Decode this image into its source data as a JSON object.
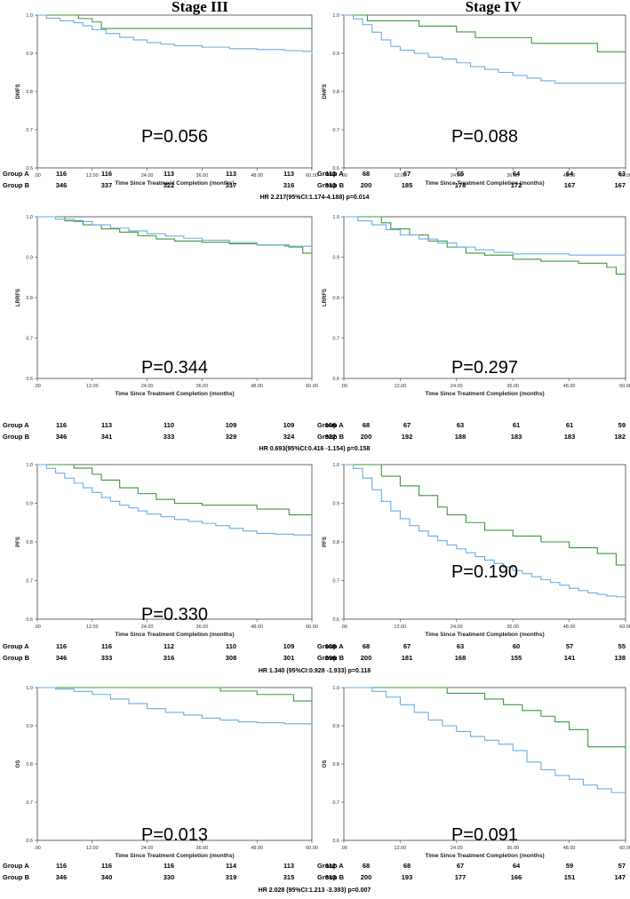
{
  "columns": {
    "left": "Stage III",
    "right": "Stage IV"
  },
  "colors": {
    "groupA": "#3a9a3a",
    "groupB": "#6aaee6",
    "axis": "#444444"
  },
  "common": {
    "xticks": [
      ".00",
      "12.00",
      "24.00",
      "36.00",
      "48.00",
      "60.00"
    ],
    "yticks": [
      "0.6",
      "0.7",
      "0.8",
      "0.9",
      "1.0"
    ],
    "xlabel": "Time Since Treatment Completion (months)",
    "groupA_label": "Group A",
    "groupB_label": "Group B"
  },
  "chart_data": [
    {
      "type": "line",
      "row": 0,
      "col": 0,
      "ylabel": "DMFS",
      "pvalue": "P=0.056",
      "ylim": [
        0.6,
        1.0
      ],
      "xlim": [
        0,
        60
      ],
      "series": [
        {
          "name": "Group A",
          "x": [
            0,
            8,
            9,
            12,
            14,
            60
          ],
          "y": [
            1.0,
            1.0,
            0.991,
            0.982,
            0.965,
            0.965
          ]
        },
        {
          "name": "Group B",
          "x": [
            0,
            2,
            5,
            8,
            10,
            12,
            15,
            18,
            21,
            24,
            27,
            30,
            36,
            42,
            48,
            54,
            58,
            60
          ],
          "y": [
            1.0,
            0.992,
            0.985,
            0.98,
            0.972,
            0.962,
            0.952,
            0.942,
            0.935,
            0.928,
            0.924,
            0.92,
            0.916,
            0.912,
            0.91,
            0.907,
            0.905,
            0.9
          ]
        }
      ],
      "risk": {
        "A": [
          "116",
          "116",
          "113",
          "113",
          "113",
          "113"
        ],
        "B": [
          "346",
          "337",
          "322",
          "317",
          "316",
          "313"
        ]
      },
      "hr": "HR 2.217(95%CI:1.174-4.188) p=0.014"
    },
    {
      "type": "line",
      "row": 0,
      "col": 1,
      "ylabel": "DMFS",
      "pvalue": "P=0.088",
      "ylim": [
        0.6,
        1.0
      ],
      "xlim": [
        0,
        60
      ],
      "series": [
        {
          "name": "Group A",
          "x": [
            0,
            4,
            5,
            12,
            16,
            24,
            28,
            36,
            40,
            54,
            60
          ],
          "y": [
            1.0,
            1.0,
            0.985,
            0.985,
            0.971,
            0.956,
            0.941,
            0.941,
            0.926,
            0.904,
            0.904
          ]
        },
        {
          "name": "Group B",
          "x": [
            0,
            2,
            4,
            6,
            8,
            10,
            12,
            15,
            18,
            21,
            24,
            27,
            30,
            33,
            36,
            39,
            42,
            45,
            60
          ],
          "y": [
            1.0,
            0.99,
            0.975,
            0.955,
            0.935,
            0.918,
            0.908,
            0.9,
            0.89,
            0.885,
            0.875,
            0.865,
            0.858,
            0.85,
            0.842,
            0.835,
            0.828,
            0.822,
            0.822
          ]
        }
      ],
      "risk": {
        "A": [
          "68",
          "67",
          "65",
          "64",
          "64",
          "63"
        ],
        "B": [
          "200",
          "185",
          "178",
          "172",
          "167",
          "167"
        ]
      },
      "hr": ""
    },
    {
      "type": "line",
      "row": 1,
      "col": 0,
      "ylabel": "LRRFS",
      "pvalue": "P=0.344",
      "ylim": [
        0.6,
        1.0
      ],
      "xlim": [
        0,
        60
      ],
      "series": [
        {
          "name": "Group A",
          "x": [
            0,
            6,
            10,
            14,
            18,
            22,
            26,
            30,
            36,
            42,
            48,
            55,
            58,
            60
          ],
          "y": [
            1.0,
            0.99,
            0.98,
            0.97,
            0.962,
            0.953,
            0.945,
            0.94,
            0.937,
            0.933,
            0.93,
            0.925,
            0.91,
            0.91
          ]
        },
        {
          "name": "Group B",
          "x": [
            0,
            4,
            8,
            12,
            16,
            20,
            24,
            28,
            32,
            36,
            42,
            48,
            54,
            60
          ],
          "y": [
            1.0,
            0.994,
            0.988,
            0.98,
            0.972,
            0.965,
            0.958,
            0.952,
            0.947,
            0.942,
            0.936,
            0.93,
            0.927,
            0.925
          ]
        }
      ],
      "risk": {
        "A": [
          "116",
          "113",
          "110",
          "109",
          "109",
          "106"
        ],
        "B": [
          "346",
          "341",
          "333",
          "329",
          "324",
          "322"
        ]
      },
      "hr": ""
    },
    {
      "type": "line",
      "row": 1,
      "col": 1,
      "ylabel": "LRRFS",
      "pvalue": "P=0.297",
      "ylim": [
        0.6,
        1.0
      ],
      "xlim": [
        0,
        60
      ],
      "series": [
        {
          "name": "Group A",
          "x": [
            0,
            6,
            8,
            10,
            14,
            18,
            22,
            26,
            30,
            36,
            42,
            50,
            56,
            58,
            60
          ],
          "y": [
            1.0,
            1.0,
            0.985,
            0.97,
            0.955,
            0.94,
            0.925,
            0.91,
            0.905,
            0.895,
            0.89,
            0.885,
            0.875,
            0.858,
            0.858
          ]
        },
        {
          "name": "Group B",
          "x": [
            0,
            3,
            6,
            9,
            12,
            16,
            20,
            24,
            28,
            32,
            36,
            48,
            60
          ],
          "y": [
            1.0,
            0.99,
            0.98,
            0.968,
            0.955,
            0.945,
            0.935,
            0.925,
            0.918,
            0.912,
            0.908,
            0.905,
            0.903
          ]
        }
      ],
      "risk": {
        "A": [
          "68",
          "67",
          "63",
          "61",
          "61",
          "59"
        ],
        "B": [
          "200",
          "192",
          "188",
          "183",
          "183",
          "182"
        ]
      },
      "hr": "HR 0.693(95%CI:0.416 -1.154) p=0.158"
    },
    {
      "type": "line",
      "row": 2,
      "col": 0,
      "ylabel": "PFS",
      "pvalue": "P=0.330",
      "ylim": [
        0.6,
        1.0
      ],
      "xlim": [
        0,
        60
      ],
      "series": [
        {
          "name": "Group A",
          "x": [
            0,
            6,
            8,
            12,
            14,
            18,
            22,
            26,
            30,
            36,
            40,
            48,
            55,
            60
          ],
          "y": [
            1.0,
            1.0,
            0.991,
            0.975,
            0.96,
            0.94,
            0.925,
            0.91,
            0.9,
            0.895,
            0.895,
            0.885,
            0.87,
            0.87
          ]
        },
        {
          "name": "Group B",
          "x": [
            0,
            2,
            4,
            6,
            8,
            10,
            12,
            14,
            16,
            18,
            20,
            22,
            24,
            27,
            30,
            33,
            36,
            39,
            42,
            45,
            48,
            52,
            56,
            60
          ],
          "y": [
            1.0,
            0.99,
            0.978,
            0.965,
            0.952,
            0.94,
            0.928,
            0.915,
            0.905,
            0.895,
            0.888,
            0.88,
            0.872,
            0.865,
            0.858,
            0.853,
            0.848,
            0.842,
            0.835,
            0.828,
            0.822,
            0.82,
            0.818,
            0.818
          ]
        }
      ],
      "risk": {
        "A": [
          "116",
          "116",
          "112",
          "110",
          "109",
          "108"
        ],
        "B": [
          "346",
          "333",
          "316",
          "308",
          "301",
          "296"
        ]
      },
      "hr": ""
    },
    {
      "type": "line",
      "row": 2,
      "col": 1,
      "ylabel": "PFS",
      "pvalue": "P=0.190",
      "ylim": [
        0.6,
        1.0
      ],
      "xlim": [
        0,
        60
      ],
      "series": [
        {
          "name": "Group A",
          "x": [
            0,
            6,
            8,
            12,
            16,
            20,
            22,
            26,
            30,
            36,
            42,
            48,
            54,
            58,
            60
          ],
          "y": [
            1.0,
            1.0,
            0.97,
            0.945,
            0.92,
            0.89,
            0.87,
            0.85,
            0.83,
            0.815,
            0.8,
            0.785,
            0.77,
            0.74,
            0.74
          ]
        },
        {
          "name": "Group B",
          "x": [
            0,
            2,
            4,
            6,
            8,
            10,
            12,
            14,
            16,
            18,
            20,
            22,
            24,
            26,
            28,
            30,
            32,
            34,
            36,
            38,
            40,
            42,
            44,
            46,
            48,
            50,
            52,
            54,
            56,
            58,
            60
          ],
          "y": [
            1.0,
            0.99,
            0.965,
            0.935,
            0.905,
            0.88,
            0.86,
            0.842,
            0.828,
            0.815,
            0.803,
            0.792,
            0.782,
            0.772,
            0.762,
            0.753,
            0.744,
            0.735,
            0.726,
            0.718,
            0.71,
            0.702,
            0.695,
            0.688,
            0.68,
            0.674,
            0.668,
            0.664,
            0.66,
            0.658,
            0.658
          ]
        }
      ],
      "risk": {
        "A": [
          "68",
          "67",
          "63",
          "60",
          "57",
          "55"
        ],
        "B": [
          "200",
          "181",
          "168",
          "155",
          "141",
          "138"
        ]
      },
      "hr": "HR 1.340 (95%CI:0.928 -1.933) p=0.118"
    },
    {
      "type": "line",
      "row": 3,
      "col": 0,
      "ylabel": "OS",
      "pvalue": "P=0.013",
      "ylim": [
        0.6,
        1.0
      ],
      "xlim": [
        0,
        60
      ],
      "series": [
        {
          "name": "Group A",
          "x": [
            0,
            36,
            40,
            48,
            56,
            60
          ],
          "y": [
            1.0,
            1.0,
            0.991,
            0.982,
            0.965,
            0.965
          ]
        },
        {
          "name": "Group B",
          "x": [
            0,
            4,
            8,
            12,
            16,
            20,
            24,
            28,
            32,
            36,
            40,
            44,
            48,
            54,
            60
          ],
          "y": [
            1.0,
            0.996,
            0.99,
            0.982,
            0.97,
            0.958,
            0.945,
            0.935,
            0.928,
            0.92,
            0.915,
            0.91,
            0.908,
            0.905,
            0.903
          ]
        }
      ],
      "risk": {
        "A": [
          "116",
          "116",
          "116",
          "114",
          "113",
          "112"
        ],
        "B": [
          "346",
          "340",
          "330",
          "319",
          "315",
          "313"
        ]
      },
      "hr": ""
    },
    {
      "type": "line",
      "row": 3,
      "col": 1,
      "ylabel": "OS",
      "pvalue": "P=0.091",
      "ylim": [
        0.6,
        1.0
      ],
      "xlim": [
        0,
        60
      ],
      "series": [
        {
          "name": "Group A",
          "x": [
            0,
            20,
            22,
            30,
            34,
            38,
            42,
            45,
            48,
            52,
            60
          ],
          "y": [
            1.0,
            1.0,
            0.985,
            0.97,
            0.955,
            0.94,
            0.925,
            0.91,
            0.89,
            0.845,
            0.83
          ]
        },
        {
          "name": "Group B",
          "x": [
            0,
            6,
            9,
            12,
            15,
            18,
            21,
            24,
            27,
            30,
            33,
            36,
            39,
            42,
            45,
            48,
            51,
            54,
            57,
            60
          ],
          "y": [
            1.0,
            0.99,
            0.975,
            0.955,
            0.935,
            0.915,
            0.9,
            0.885,
            0.872,
            0.862,
            0.852,
            0.835,
            0.805,
            0.785,
            0.77,
            0.76,
            0.745,
            0.735,
            0.725,
            0.725
          ]
        }
      ],
      "risk": {
        "A": [
          "68",
          "68",
          "67",
          "64",
          "59",
          "57"
        ],
        "B": [
          "200",
          "193",
          "177",
          "166",
          "151",
          "147"
        ]
      },
      "hr": "HR 2.028 (95%CI:1.213 -3.393) p=0.007"
    }
  ]
}
